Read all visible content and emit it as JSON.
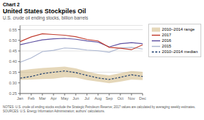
{
  "chart_data": {
    "type": "line",
    "title": "United States Stockpiles Oil",
    "subtitle": "U.S. crude oil ending stocks, billion barrels",
    "annotations": [
      "Chart 2",
      "NOTES: U.S. crude oil ending stocks exclude the Strategic Petroleum Reserve; 2017 values are calculated by averaging weekly estimates.",
      "SOURCES: U.S. Energy Information Administration; authors' calculations."
    ],
    "categories": [
      "Jan",
      "Feb",
      "Mar",
      "Apr",
      "May",
      "Jun",
      "Jul",
      "Aug",
      "Sep",
      "Oct",
      "Nov",
      "Dec"
    ],
    "ylim": [
      0.25,
      0.57
    ],
    "yticks": [
      0.25,
      {
        "value": 0.3,
        "label": "0.30"
      },
      0.35,
      {
        "value": 0.4,
        "label": "0.40"
      },
      0.45,
      {
        "value": 0.5,
        "label": "0.50"
      },
      0.55
    ],
    "grid": true,
    "legend": "right",
    "series": [
      {
        "name": "2010–2014 range",
        "type": "range",
        "color": "#d4bc8a",
        "low": [
          0.314,
          0.316,
          0.318,
          0.32,
          0.326,
          0.325,
          0.313,
          0.306,
          0.298,
          0.306,
          0.316,
          0.313
        ],
        "high": [
          0.358,
          0.365,
          0.37,
          0.373,
          0.376,
          0.368,
          0.353,
          0.342,
          0.335,
          0.346,
          0.356,
          0.352
        ]
      },
      {
        "name": "2017",
        "type": "line",
        "color": "#c0392b",
        "line_style": "solid",
        "values": [
          0.494,
          0.516,
          0.531,
          0.527,
          0.524,
          0.517,
          0.504,
          0.497,
          0.467,
          0.463,
          0.456,
          0.479
        ]
      },
      {
        "name": "2016",
        "type": "line",
        "color": "#5b4ea0",
        "line_style": "solid",
        "values": [
          0.479,
          0.491,
          0.502,
          0.507,
          0.509,
          0.505,
          0.497,
          0.491,
          0.469,
          0.484,
          0.489,
          0.484
        ]
      },
      {
        "name": "2015",
        "type": "line",
        "color": "#aab5d0",
        "line_style": "solid",
        "values": [
          0.397,
          0.417,
          0.447,
          0.453,
          0.464,
          0.461,
          0.454,
          0.451,
          0.444,
          0.464,
          0.467,
          0.459
        ]
      },
      {
        "name": "2010–2014 median",
        "type": "line",
        "color": "#1a3a6b",
        "line_style": "dashed",
        "values": [
          0.322,
          0.33,
          0.343,
          0.35,
          0.356,
          0.348,
          0.335,
          0.323,
          0.316,
          0.326,
          0.338,
          0.33
        ]
      }
    ]
  }
}
